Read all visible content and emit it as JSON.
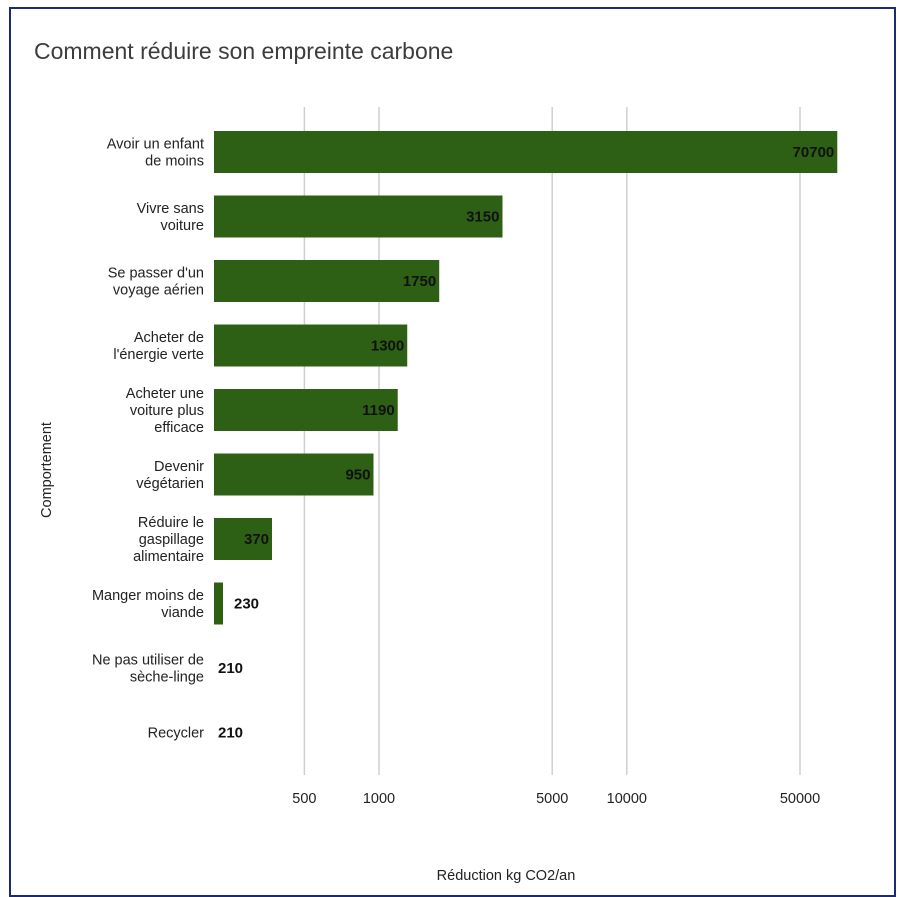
{
  "chart_data": {
    "type": "bar",
    "orientation": "horizontal",
    "title": "Comment réduire son empreinte carbone",
    "xlabel": "Réduction kg CO2/an",
    "ylabel": "Comportement",
    "x_scale": "log",
    "x_ticks": [
      500,
      1000,
      5000,
      10000,
      50000
    ],
    "x_tick_labels": [
      "500",
      "1000",
      "5000",
      "10000",
      "50000"
    ],
    "grid": true,
    "bar_color": "#2d6014",
    "categories": [
      [
        "Avoir un enfant",
        "de moins"
      ],
      [
        "Vivre sans",
        "voiture"
      ],
      [
        "Se passer d'un",
        "voyage aérien"
      ],
      [
        "Acheter de",
        "l'énergie verte"
      ],
      [
        "Acheter une",
        "voiture plus",
        "efficace"
      ],
      [
        "Devenir",
        "végétarien"
      ],
      [
        "Réduire le",
        "gaspillage",
        "alimentaire"
      ],
      [
        "Manger moins de",
        "viande"
      ],
      [
        "Ne pas utiliser de",
        "sèche-linge"
      ],
      [
        "Recycler"
      ]
    ],
    "values": [
      70700,
      3150,
      1750,
      1300,
      1190,
      950,
      370,
      230,
      210,
      210
    ],
    "value_labels": [
      "70700",
      "3150",
      "1750",
      "1300",
      "1190",
      "950",
      "370",
      "230",
      "210",
      "210"
    ]
  }
}
